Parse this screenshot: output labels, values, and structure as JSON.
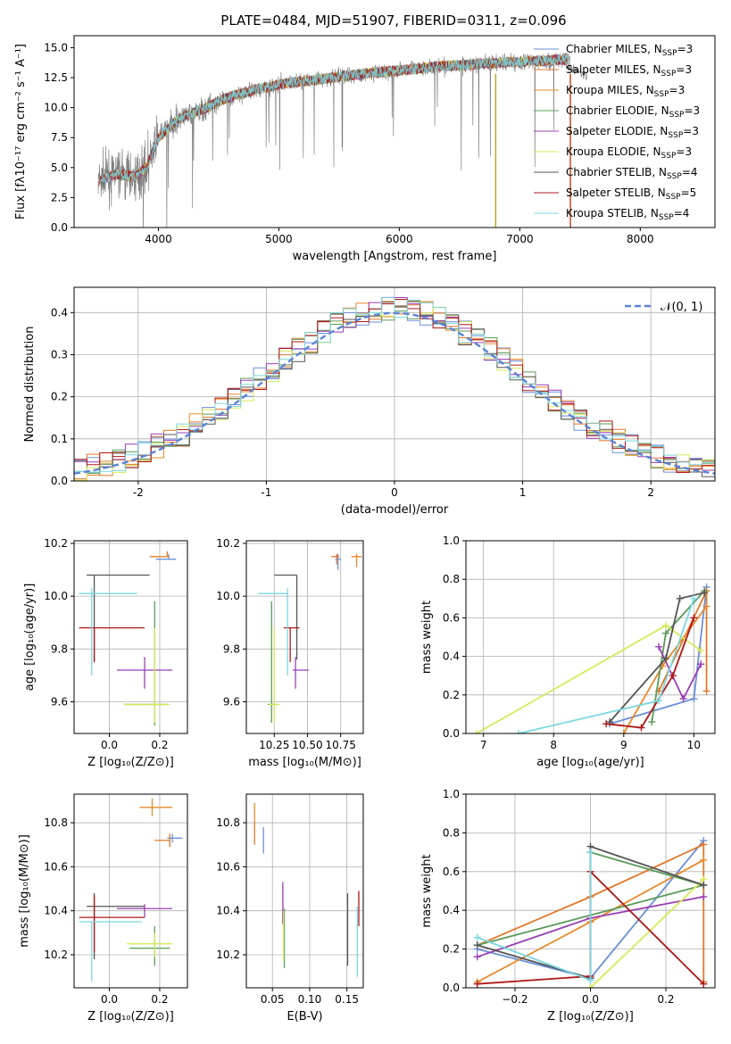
{
  "figure_title": "PLATE=0484, MJD=51907, FIBERID=0311, z=0.096",
  "series_names": [
    "Chabrier MILES",
    "Salpeter MILES",
    "Kroupa MILES",
    "Chabrier ELODIE",
    "Salpeter ELODIE",
    "Kroupa ELODIE",
    "Chabrier STELIB",
    "Salpeter STELIB",
    "Kroupa STELIB"
  ],
  "nssp": [
    "3",
    "3",
    "3",
    "3",
    "3",
    "3",
    "4",
    "5",
    "4"
  ],
  "colors": [
    "#6a8fd8",
    "#e0782a",
    "#e8882a",
    "#5a9b5a",
    "#9a3fb4",
    "#d8e858",
    "#555555",
    "#b01818",
    "#7ad8e0"
  ],
  "chart_data": [
    {
      "id": "spectrum",
      "type": "line",
      "title": "PLATE=0484, MJD=51907, FIBERID=0311, z=0.096",
      "xlabel": "wavelength [Angstrom, rest frame]",
      "ylabel": "Flux [fλ10⁻¹⁷ erg cm⁻² s⁻¹ A⁻¹]",
      "xlim": [
        3300,
        8620
      ],
      "ylim": [
        0,
        16
      ],
      "xticks": [
        4000,
        5000,
        6000,
        7000,
        8000
      ],
      "yticks": [
        0.0,
        2.5,
        5.0,
        7.5,
        10.0,
        12.5,
        15.0
      ],
      "legend": "right",
      "data_color": "#808080",
      "continuum_x": [
        3500,
        3650,
        3800,
        3900,
        4000,
        4100,
        4200,
        4300,
        4400,
        4500,
        4600,
        4700,
        4800,
        4900,
        5000,
        5100,
        5200,
        5300,
        5400,
        5500,
        5600,
        5700,
        5800,
        5900,
        6000,
        6100,
        6200,
        6300,
        6400,
        6500,
        6600,
        6700,
        6800,
        6900,
        7000,
        7100,
        7200,
        7300,
        7400
      ],
      "continuum_y": [
        3.8,
        4.5,
        4.2,
        5.0,
        7.5,
        8.5,
        9.2,
        9.6,
        10.0,
        10.5,
        10.9,
        11.2,
        11.5,
        11.7,
        11.9,
        12.1,
        12.2,
        12.3,
        12.4,
        12.6,
        12.7,
        12.8,
        12.9,
        13.0,
        13.1,
        13.2,
        13.3,
        13.4,
        13.5,
        13.5,
        13.6,
        13.7,
        13.7,
        13.8,
        13.8,
        13.9,
        13.9,
        14.0,
        14.0
      ]
    },
    {
      "id": "residuals",
      "type": "histogram",
      "xlabel": "(data-model)/error",
      "ylabel": "Normed distribution",
      "xlim": [
        -2.5,
        2.5
      ],
      "ylim": [
        0,
        0.46
      ],
      "xticks": [
        -2,
        -1,
        0,
        1,
        2
      ],
      "yticks": [
        0.0,
        0.1,
        0.2,
        0.3,
        0.4
      ],
      "grid": true,
      "legend": "top-right",
      "legend_label": "𝒩(0, 1)",
      "normal_color": "#5b84d6"
    },
    {
      "id": "age_vs_Z",
      "type": "scatter",
      "xlabel": "Z [log₁₀(Z/Z⊙)]",
      "ylabel": "age  [log₁₀(age/yr)]",
      "xlim": [
        -0.14,
        0.31
      ],
      "ylim": [
        9.48,
        10.21
      ],
      "xticks": [
        0.0,
        0.2
      ],
      "xtick_labels": [
        "0.0",
        "0.2"
      ],
      "yticks": [
        9.6,
        9.8,
        10.0,
        10.2
      ],
      "grid": true,
      "points": [
        {
          "x": 0.235,
          "xerr": [
            0.05,
            0.03
          ],
          "y": 10.14,
          "yerr": [
            0.0,
            0.02
          ]
        },
        {
          "x": 0.23,
          "xerr": [
            0.07,
            0.0
          ],
          "y": 10.15,
          "yerr": [
            0.0,
            0.02
          ]
        },
        {
          "x": 0.23,
          "xerr": [
            0.06,
            0.01
          ],
          "y": 10.15,
          "yerr": [
            0.0,
            0.01
          ]
        },
        {
          "x": 0.18,
          "xerr": [
            0.12,
            0.05
          ],
          "y": 9.59,
          "yerr": [
            0.08,
            0.39
          ]
        },
        {
          "x": 0.14,
          "xerr": [
            0.11,
            0.11
          ],
          "y": 9.72,
          "yerr": [
            0.07,
            0.05
          ]
        },
        {
          "x": 0.18,
          "xerr": [
            0.12,
            0.06
          ],
          "y": 9.59,
          "yerr": [
            0.07,
            0.29
          ]
        },
        {
          "x": -0.06,
          "xerr": [
            0.03,
            0.22
          ],
          "y": 10.08,
          "yerr": [
            0.33,
            0.0
          ]
        },
        {
          "x": -0.06,
          "xerr": [
            0.06,
            0.2
          ],
          "y": 9.88,
          "yerr": [
            0.13,
            0.0
          ]
        },
        {
          "x": -0.07,
          "xerr": [
            0.05,
            0.18
          ],
          "y": 10.01,
          "yerr": [
            0.31,
            0.02
          ]
        }
      ]
    },
    {
      "id": "age_vs_mass",
      "type": "scatter",
      "xlabel": "mass [log₁₀(M/M⊙)]",
      "xlim": [
        10.04,
        10.92
      ],
      "ylim": [
        9.48,
        10.21
      ],
      "xticks": [
        10.25,
        10.5,
        10.75
      ],
      "xtick_labels": [
        "10.25",
        "10.50",
        "10.75"
      ],
      "yticks": [
        9.6,
        9.8,
        10.0,
        10.2
      ],
      "grid": true,
      "points": [
        {
          "x": 10.73,
          "xerr": [
            0.02,
            0.02
          ],
          "y": 10.14,
          "yerr": [
            0.04,
            0.02
          ]
        },
        {
          "x": 10.72,
          "xerr": [
            0.04,
            0.02
          ],
          "y": 10.15,
          "yerr": [
            0.03,
            0.01
          ]
        },
        {
          "x": 10.87,
          "xerr": [
            0.04,
            0.04
          ],
          "y": 10.15,
          "yerr": [
            0.04,
            0.01
          ]
        },
        {
          "x": 10.23,
          "xerr": [
            0.03,
            0.03
          ],
          "y": 9.59,
          "yerr": [
            0.07,
            0.39
          ]
        },
        {
          "x": 10.41,
          "xerr": [
            0.02,
            0.1
          ],
          "y": 9.72,
          "yerr": [
            0.07,
            0.05
          ]
        },
        {
          "x": 10.25,
          "xerr": [
            0.04,
            0.04
          ],
          "y": 9.59,
          "yerr": [
            0.07,
            0.29
          ]
        },
        {
          "x": 10.42,
          "xerr": [
            0.17,
            0.0
          ],
          "y": 10.08,
          "yerr": [
            0.32,
            0.0
          ]
        },
        {
          "x": 10.37,
          "xerr": [
            0.05,
            0.07
          ],
          "y": 9.88,
          "yerr": [
            0.13,
            0.0
          ]
        },
        {
          "x": 10.35,
          "xerr": [
            0.22,
            0.0
          ],
          "y": 10.01,
          "yerr": [
            0.31,
            0.02
          ]
        }
      ]
    },
    {
      "id": "weight_vs_age",
      "type": "line",
      "xlabel": "age  [log₁₀(age/yr)]",
      "ylabel": "mass weight",
      "xlim": [
        6.75,
        10.3
      ],
      "ylim": [
        0,
        1
      ],
      "xticks": [
        7,
        8,
        9,
        10
      ],
      "yticks": [
        0.0,
        0.2,
        0.4,
        0.6,
        0.8,
        1.0
      ],
      "grid": true,
      "series": [
        {
          "points": [
            [
              8.8,
              0.05
            ],
            [
              10.0,
              0.18
            ],
            [
              10.18,
              0.76
            ]
          ]
        },
        {
          "points": [
            [
              9.5,
              0.22
            ],
            [
              10.18,
              0.74
            ],
            [
              10.18,
              0.22
            ]
          ]
        },
        {
          "points": [
            [
              9.0,
              0.0
            ],
            [
              9.55,
              0.35
            ],
            [
              10.18,
              0.66
            ]
          ]
        },
        {
          "points": [
            [
              9.4,
              0.06
            ],
            [
              9.6,
              0.52
            ],
            [
              10.15,
              0.74
            ]
          ]
        },
        {
          "points": [
            [
              9.5,
              0.45
            ],
            [
              9.85,
              0.18
            ],
            [
              10.1,
              0.36
            ]
          ]
        },
        {
          "points": [
            [
              6.9,
              0.0
            ],
            [
              9.6,
              0.56
            ],
            [
              10.1,
              0.43
            ]
          ]
        },
        {
          "points": [
            [
              8.8,
              0.06
            ],
            [
              9.6,
              0.39
            ],
            [
              9.8,
              0.7
            ],
            [
              10.15,
              0.73
            ]
          ]
        },
        {
          "points": [
            [
              8.75,
              0.05
            ],
            [
              9.25,
              0.03
            ],
            [
              9.7,
              0.3
            ],
            [
              10.0,
              0.6
            ]
          ]
        },
        {
          "points": [
            [
              7.5,
              0.0
            ],
            [
              9.5,
              0.17
            ],
            [
              10.0,
              0.7
            ]
          ]
        }
      ]
    },
    {
      "id": "mass_vs_Z",
      "type": "scatter",
      "xlabel": "Z [log₁₀(Z/Z⊙)]",
      "ylabel": "mass [log₁₀(M/M⊙)]",
      "xlim": [
        -0.14,
        0.31
      ],
      "ylim": [
        10.05,
        10.93
      ],
      "xticks": [
        0.0,
        0.2
      ],
      "xtick_labels": [
        "0.0",
        "0.2"
      ],
      "yticks": [
        10.2,
        10.4,
        10.6,
        10.8
      ],
      "grid": true,
      "points": [
        {
          "x": 0.25,
          "xerr": [
            0.02,
            0.04
          ],
          "y": 10.73,
          "yerr": [
            0.02,
            0.02
          ]
        },
        {
          "x": 0.24,
          "xerr": [
            0.06,
            0.0
          ],
          "y": 10.72,
          "yerr": [
            0.03,
            0.03
          ]
        },
        {
          "x": 0.17,
          "xerr": [
            0.05,
            0.08
          ],
          "y": 10.87,
          "yerr": [
            0.04,
            0.04
          ]
        },
        {
          "x": 0.18,
          "xerr": [
            0.1,
            0.06
          ],
          "y": 10.23,
          "yerr": [
            0.08,
            0.1
          ]
        },
        {
          "x": 0.14,
          "xerr": [
            0.11,
            0.11
          ],
          "y": 10.41,
          "yerr": [
            0.04,
            0.02
          ]
        },
        {
          "x": 0.18,
          "xerr": [
            0.11,
            0.07
          ],
          "y": 10.25,
          "yerr": [
            0.06,
            0.05
          ]
        },
        {
          "x": -0.06,
          "xerr": [
            0.03,
            0.2
          ],
          "y": 10.42,
          "yerr": [
            0.24,
            0.06
          ]
        },
        {
          "x": -0.06,
          "xerr": [
            0.06,
            0.2
          ],
          "y": 10.37,
          "yerr": [
            0.16,
            0.1
          ]
        },
        {
          "x": -0.07,
          "xerr": [
            0.05,
            0.2
          ],
          "y": 10.35,
          "yerr": [
            0.27,
            0.0
          ]
        }
      ]
    },
    {
      "id": "mass_vs_ebv",
      "type": "scatter",
      "xlabel": "E(B-V)",
      "xlim": [
        0.015,
        0.172
      ],
      "ylim": [
        10.05,
        10.93
      ],
      "xticks": [
        0.05,
        0.1,
        0.15
      ],
      "xtick_labels": [
        "0.05",
        "0.10",
        "0.15"
      ],
      "yticks": [
        10.2,
        10.4,
        10.6,
        10.8
      ],
      "grid": true,
      "points": [
        {
          "x": 0.038,
          "y": 10.72,
          "yerr": [
            0.06,
            0.06
          ]
        },
        {
          "x": 0.026,
          "y": 10.76,
          "yerr": [
            0.06,
            0.04
          ]
        },
        {
          "x": 0.026,
          "y": 10.82,
          "yerr": [
            0.03,
            0.07
          ]
        },
        {
          "x": 0.066,
          "y": 10.28,
          "yerr": [
            0.14,
            0.13
          ]
        },
        {
          "x": 0.064,
          "y": 10.42,
          "yerr": [
            0.08,
            0.11
          ]
        },
        {
          "x": 0.065,
          "y": 10.28,
          "yerr": [
            0.11,
            0.12
          ]
        },
        {
          "x": 0.151,
          "y": 10.32,
          "yerr": [
            0.17,
            0.16
          ]
        },
        {
          "x": 0.166,
          "y": 10.44,
          "yerr": [
            0.11,
            0.05
          ]
        },
        {
          "x": 0.164,
          "y": 10.26,
          "yerr": [
            0.16,
            0.16
          ]
        }
      ]
    },
    {
      "id": "weight_vs_Z",
      "type": "line",
      "xlabel": "Z [log₁₀(Z/Z⊙)]",
      "ylabel": "mass weight",
      "xlim": [
        -0.33,
        0.33
      ],
      "ylim": [
        0,
        1
      ],
      "xticks": [
        -0.2,
        0.0,
        0.2
      ],
      "xtick_labels": [
        "−0.2",
        "0.0",
        "0.2"
      ],
      "yticks": [
        0.0,
        0.2,
        0.4,
        0.6,
        0.8,
        1.0
      ],
      "grid": true,
      "series": [
        {
          "points": [
            [
              -0.3,
              0.2
            ],
            [
              0.0,
              0.05
            ],
            [
              0.3,
              0.76
            ]
          ]
        },
        {
          "points": [
            [
              -0.3,
              0.22
            ],
            [
              0.0,
              0.47
            ],
            [
              0.3,
              0.74
            ],
            [
              0.3,
              0.03
            ]
          ]
        },
        {
          "points": [
            [
              -0.3,
              0.03
            ],
            [
              0.0,
              0.34
            ],
            [
              0.3,
              0.66
            ]
          ]
        },
        {
          "points": [
            [
              0.0,
              0.05
            ],
            [
              0.0,
              0.7
            ],
            [
              0.3,
              0.53
            ],
            [
              -0.3,
              0.22
            ]
          ]
        },
        {
          "points": [
            [
              -0.3,
              0.16
            ],
            [
              0.0,
              0.36
            ],
            [
              0.3,
              0.47
            ]
          ]
        },
        {
          "points": [
            [
              0.0,
              0.0
            ],
            [
              0.3,
              0.56
            ]
          ]
        },
        {
          "points": [
            [
              -0.3,
              0.22
            ],
            [
              0.0,
              0.05
            ],
            [
              0.0,
              0.73
            ],
            [
              0.3,
              0.53
            ]
          ]
        },
        {
          "points": [
            [
              -0.3,
              0.02
            ],
            [
              0.0,
              0.06
            ],
            [
              0.0,
              0.6
            ],
            [
              0.3,
              0.02
            ]
          ]
        },
        {
          "points": [
            [
              -0.3,
              0.26
            ],
            [
              0.0,
              0.04
            ],
            [
              0.0,
              0.7
            ]
          ]
        }
      ]
    }
  ]
}
